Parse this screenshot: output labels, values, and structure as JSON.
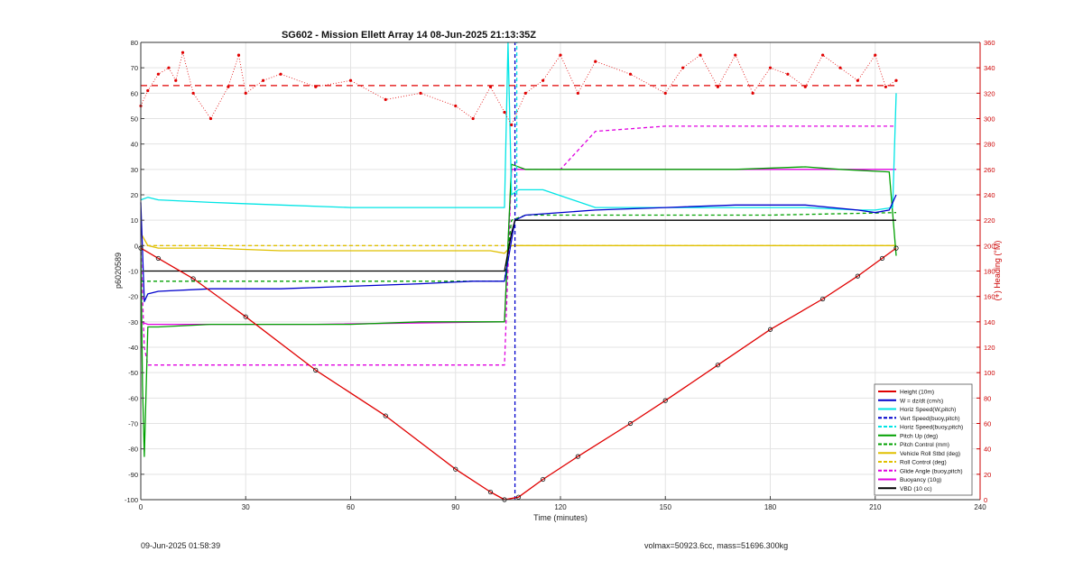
{
  "chart_data": {
    "type": "line",
    "title": "SG602 - Mission Ellett Array 14 08-Jun-2025 21:13:35Z",
    "xlabel": "Time (minutes)",
    "ylabel": "p6020589",
    "y2label": "(+) Heading (°M)",
    "xlim": [
      0,
      240
    ],
    "ylim": [
      -100,
      80
    ],
    "y2lim": [
      0,
      360
    ],
    "xticks": [
      "0",
      "30",
      "60",
      "90",
      "120",
      "150",
      "180",
      "210",
      "240"
    ],
    "yticks": [
      "80",
      "70",
      "60",
      "50",
      "40",
      "30",
      "20",
      "10",
      "0",
      "-10",
      "-20",
      "-30",
      "-40",
      "-50",
      "-60",
      "-70",
      "-80",
      "-90",
      "-100"
    ],
    "y2ticks": [
      "360",
      "340",
      "320",
      "300",
      "280",
      "260",
      "240",
      "220",
      "200",
      "180",
      "160",
      "140",
      "120",
      "100",
      "80",
      "60",
      "40",
      "20",
      "0"
    ],
    "grid": true,
    "legend_position": "bottom-right",
    "colors": {
      "height": "#e00000",
      "w": "#0000cc",
      "horiz": "#00e5e5",
      "pitch": "#00a000",
      "roll": "#e0c000",
      "buoy": "#e000e0",
      "vbd": "#000000",
      "heading": "#e00000",
      "right_axis": "#cc0000"
    },
    "series": [
      {
        "name": "Height (10m)",
        "x": [
          0,
          5,
          15,
          30,
          50,
          70,
          90,
          100,
          104,
          108,
          115,
          125,
          140,
          150,
          165,
          180,
          195,
          205,
          212,
          216
        ],
        "values": [
          -1,
          -5,
          -13,
          -28,
          -49,
          -67,
          -88,
          -97,
          -100,
          -99,
          -92,
          -83,
          -70,
          -61,
          -47,
          -33,
          -21,
          -12,
          -5,
          -1
        ]
      },
      {
        "name": "W = dz/dt (cm/s)",
        "x": [
          0,
          1,
          2,
          5,
          20,
          40,
          60,
          80,
          95,
          104,
          107,
          110,
          130,
          150,
          170,
          190,
          205,
          210,
          214,
          216
        ],
        "values": [
          17,
          -22,
          -19,
          -18,
          -17,
          -17,
          -16,
          -15,
          -14,
          -14,
          10,
          12,
          14,
          15,
          16,
          16,
          14,
          13,
          14,
          20
        ]
      },
      {
        "name": "Horiz Speed(W,pitch)",
        "x": [
          0,
          2,
          5,
          20,
          40,
          60,
          80,
          95,
          104,
          105,
          106,
          108,
          115,
          130,
          150,
          170,
          190,
          205,
          210,
          215,
          216
        ],
        "values": [
          18,
          19,
          18,
          17,
          16,
          15,
          15,
          15,
          15,
          80,
          20,
          22,
          22,
          15,
          15,
          15,
          15,
          14,
          14,
          15,
          60
        ]
      },
      {
        "name": "Vert Speed(buoy,pitch)",
        "x": [
          107,
          107
        ],
        "values": [
          -100,
          80
        ]
      },
      {
        "name": "Horiz Speed(buoy,pitch)",
        "x": [
          107.5,
          107.5
        ],
        "values": [
          15,
          80
        ]
      },
      {
        "name": "Pitch Up (deg)",
        "x": [
          0,
          0.5,
          1,
          2,
          5,
          20,
          40,
          60,
          80,
          100,
          104,
          106,
          110,
          130,
          150,
          170,
          190,
          200,
          214,
          216
        ],
        "values": [
          0,
          -55,
          -83,
          -32,
          -32,
          -31,
          -31,
          -31,
          -30,
          -30,
          -30,
          32,
          30,
          30,
          30,
          30,
          31,
          30,
          29,
          -4
        ]
      },
      {
        "name": "Pitch Control (mm)",
        "x": [
          0,
          5,
          30,
          60,
          90,
          104,
          106,
          110,
          150,
          180,
          216
        ],
        "values": [
          -14,
          -14,
          -14,
          -14,
          -14,
          -14,
          10,
          12,
          12,
          12,
          13
        ]
      },
      {
        "name": "Vehicle Roll Stbd (deg)",
        "x": [
          0,
          2,
          5,
          20,
          40,
          60,
          80,
          100,
          104,
          106,
          110,
          150,
          200,
          216
        ],
        "values": [
          5,
          0,
          -1,
          -1,
          -2,
          -2,
          -2,
          -2,
          -3,
          0,
          0,
          0,
          0,
          0
        ]
      },
      {
        "name": "Roll Control (deg)",
        "x": [
          0,
          5,
          20,
          50,
          90,
          104,
          106,
          150,
          216
        ],
        "values": [
          0,
          0,
          0,
          0,
          0,
          0,
          0,
          0,
          0
        ]
      },
      {
        "name": "Glide Angle (buoy,pitch)",
        "x": [
          0,
          1,
          2,
          5,
          30,
          60,
          90,
          100,
          104,
          106,
          110,
          120,
          130,
          150,
          180,
          200,
          216
        ],
        "values": [
          0,
          -40,
          -47,
          -47,
          -47,
          -47,
          -47,
          -47,
          -47,
          30,
          30,
          30,
          45,
          47,
          47,
          47,
          47
        ]
      },
      {
        "name": "Buoyancy (10g)",
        "x": [
          0,
          2,
          5,
          50,
          104,
          106,
          110,
          150,
          200,
          216
        ],
        "values": [
          -30,
          -31,
          -31,
          -31,
          -30,
          30,
          30,
          30,
          30,
          30
        ]
      },
      {
        "name": "VBD (10 cc)",
        "x": [
          0,
          1,
          2,
          5,
          30,
          60,
          90,
          103,
          104,
          106,
          107,
          108,
          216
        ],
        "values": [
          -10,
          -10,
          -10,
          -10,
          -10,
          -10,
          -10,
          -10,
          -10,
          5,
          10,
          10,
          10
        ]
      },
      {
        "name": "Heading",
        "axis": "right",
        "x": [
          0,
          2,
          5,
          8,
          10,
          12,
          15,
          20,
          25,
          28,
          30,
          35,
          40,
          50,
          60,
          70,
          80,
          90,
          95,
          100,
          104,
          106,
          110,
          115,
          120,
          125,
          130,
          140,
          150,
          155,
          160,
          165,
          170,
          175,
          180,
          185,
          190,
          195,
          200,
          205,
          210,
          213,
          216
        ],
        "values": [
          310,
          322,
          335,
          340,
          330,
          352,
          320,
          300,
          325,
          350,
          320,
          330,
          335,
          325,
          330,
          315,
          320,
          310,
          300,
          325,
          305,
          295,
          320,
          330,
          350,
          320,
          345,
          335,
          320,
          340,
          350,
          325,
          350,
          320,
          340,
          335,
          325,
          350,
          340,
          330,
          350,
          325,
          330
        ]
      }
    ],
    "reference_lines": [
      {
        "name": "Heading mean",
        "axis": "right",
        "y": 326
      }
    ],
    "legend_entries": [
      "Height (10m)",
      "W = dz/dt (cm/s)",
      "Horiz Speed(W,pitch)",
      "Vert Speed(buoy,pitch)",
      "Horiz Speed(buoy,pitch)",
      "Pitch Up (deg)",
      "Pitch Control (mm)",
      "Vehicle Roll Stbd (deg)",
      "Roll Control (deg)",
      "Glide Angle (buoy,pitch)",
      "Buoyancy (10g)",
      "VBD (10 cc)"
    ]
  },
  "footer": {
    "left_text": "09-Jun-2025 01:58:39",
    "right_text": "volmax=50923.6cc, mass=51696.300kg"
  }
}
